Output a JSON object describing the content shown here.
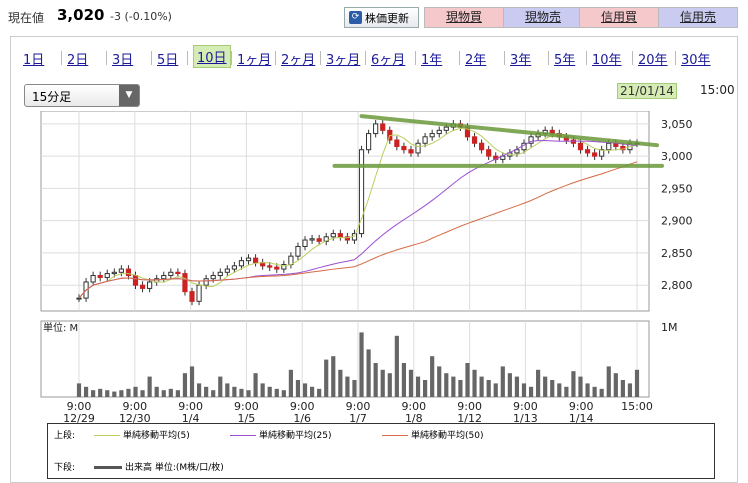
{
  "header": {
    "price_label": "現在値",
    "price_value": "3,020",
    "price_change": "-3 (-0.10%)",
    "refresh_label": "株価更新",
    "buttons": [
      "現物買",
      "現物売",
      "信用買",
      "信用売"
    ]
  },
  "tabs": [
    "1日",
    "2日",
    "3日",
    "5日",
    "10日",
    "1ヶ月",
    "2ヶ月",
    "3ヶ月",
    "6ヶ月",
    "1年",
    "2年",
    "3年",
    "5年",
    "10年",
    "20年",
    "30年"
  ],
  "active_tab": "10日",
  "interval": {
    "value": "15分足"
  },
  "stamp": {
    "date": "21/01/14",
    "time": "15:00"
  },
  "chart_data": {
    "type": "candlestick",
    "y_ticks": [
      "3,050",
      "3,000",
      "2,950",
      "2,900",
      "2,850",
      "2,800"
    ],
    "ylim": [
      2760,
      3070
    ],
    "x_ticks": [
      {
        "time": "9:00",
        "date": "12/29"
      },
      {
        "time": "9:00",
        "date": "12/30"
      },
      {
        "time": "9:00",
        "date": "1/4"
      },
      {
        "time": "9:00",
        "date": "1/5"
      },
      {
        "time": "9:00",
        "date": "1/6"
      },
      {
        "time": "9:00",
        "date": "1/7"
      },
      {
        "time": "9:00",
        "date": "1/8"
      },
      {
        "time": "9:00",
        "date": "1/12"
      },
      {
        "time": "9:00",
        "date": "1/13"
      },
      {
        "time": "9:00",
        "date": "1/14"
      },
      {
        "time": "15:00",
        "date": ""
      }
    ],
    "close": [
      2780,
      2805,
      2815,
      2812,
      2818,
      2820,
      2825,
      2815,
      2800,
      2795,
      2805,
      2810,
      2815,
      2820,
      2818,
      2790,
      2775,
      2800,
      2810,
      2815,
      2820,
      2825,
      2830,
      2838,
      2842,
      2835,
      2830,
      2828,
      2825,
      2832,
      2845,
      2860,
      2870,
      2872,
      2868,
      2875,
      2880,
      2875,
      2870,
      2880,
      3010,
      3035,
      3050,
      3040,
      3025,
      3015,
      3010,
      3005,
      3020,
      3030,
      3035,
      3040,
      3045,
      3050,
      3045,
      3030,
      3020,
      3010,
      3000,
      2995,
      3000,
      3005,
      3010,
      3020,
      3030,
      3035,
      3040,
      3035,
      3030,
      3025,
      3020,
      3010,
      3005,
      3000,
      3010,
      3020,
      3015,
      3010,
      3020,
      3020
    ],
    "ma_labels": [
      "単純移動平均(5)",
      "単純移動平均(25)",
      "単純移動平均(50)"
    ],
    "ma_colors": [
      "#b9cf5f",
      "#9b4fd0",
      "#d66a44"
    ],
    "volume_label": "単位: M",
    "volume_max_label": "1M",
    "volume": [
      0.2,
      0.15,
      0.1,
      0.12,
      0.1,
      0.08,
      0.1,
      0.12,
      0.15,
      0.1,
      0.3,
      0.15,
      0.1,
      0.12,
      0.1,
      0.35,
      0.45,
      0.2,
      0.15,
      0.1,
      0.3,
      0.2,
      0.15,
      0.12,
      0.1,
      0.35,
      0.2,
      0.15,
      0.12,
      0.1,
      0.4,
      0.25,
      0.2,
      0.15,
      0.12,
      0.55,
      0.6,
      0.4,
      0.3,
      0.25,
      0.95,
      0.7,
      0.5,
      0.4,
      0.35,
      0.9,
      0.5,
      0.4,
      0.3,
      0.25,
      0.6,
      0.45,
      0.35,
      0.3,
      0.25,
      0.5,
      0.4,
      0.3,
      0.25,
      0.2,
      0.45,
      0.35,
      0.3,
      0.2,
      0.15,
      0.4,
      0.3,
      0.25,
      0.2,
      0.15,
      0.38,
      0.3,
      0.2,
      0.15,
      0.12,
      0.45,
      0.35,
      0.25,
      0.2,
      0.4
    ],
    "trendlines": "green annotations"
  },
  "legend": {
    "upper_label": "上段:",
    "lower_label": "下段:",
    "volume_legend": "出来高 単位:(M株/口/枚)"
  }
}
